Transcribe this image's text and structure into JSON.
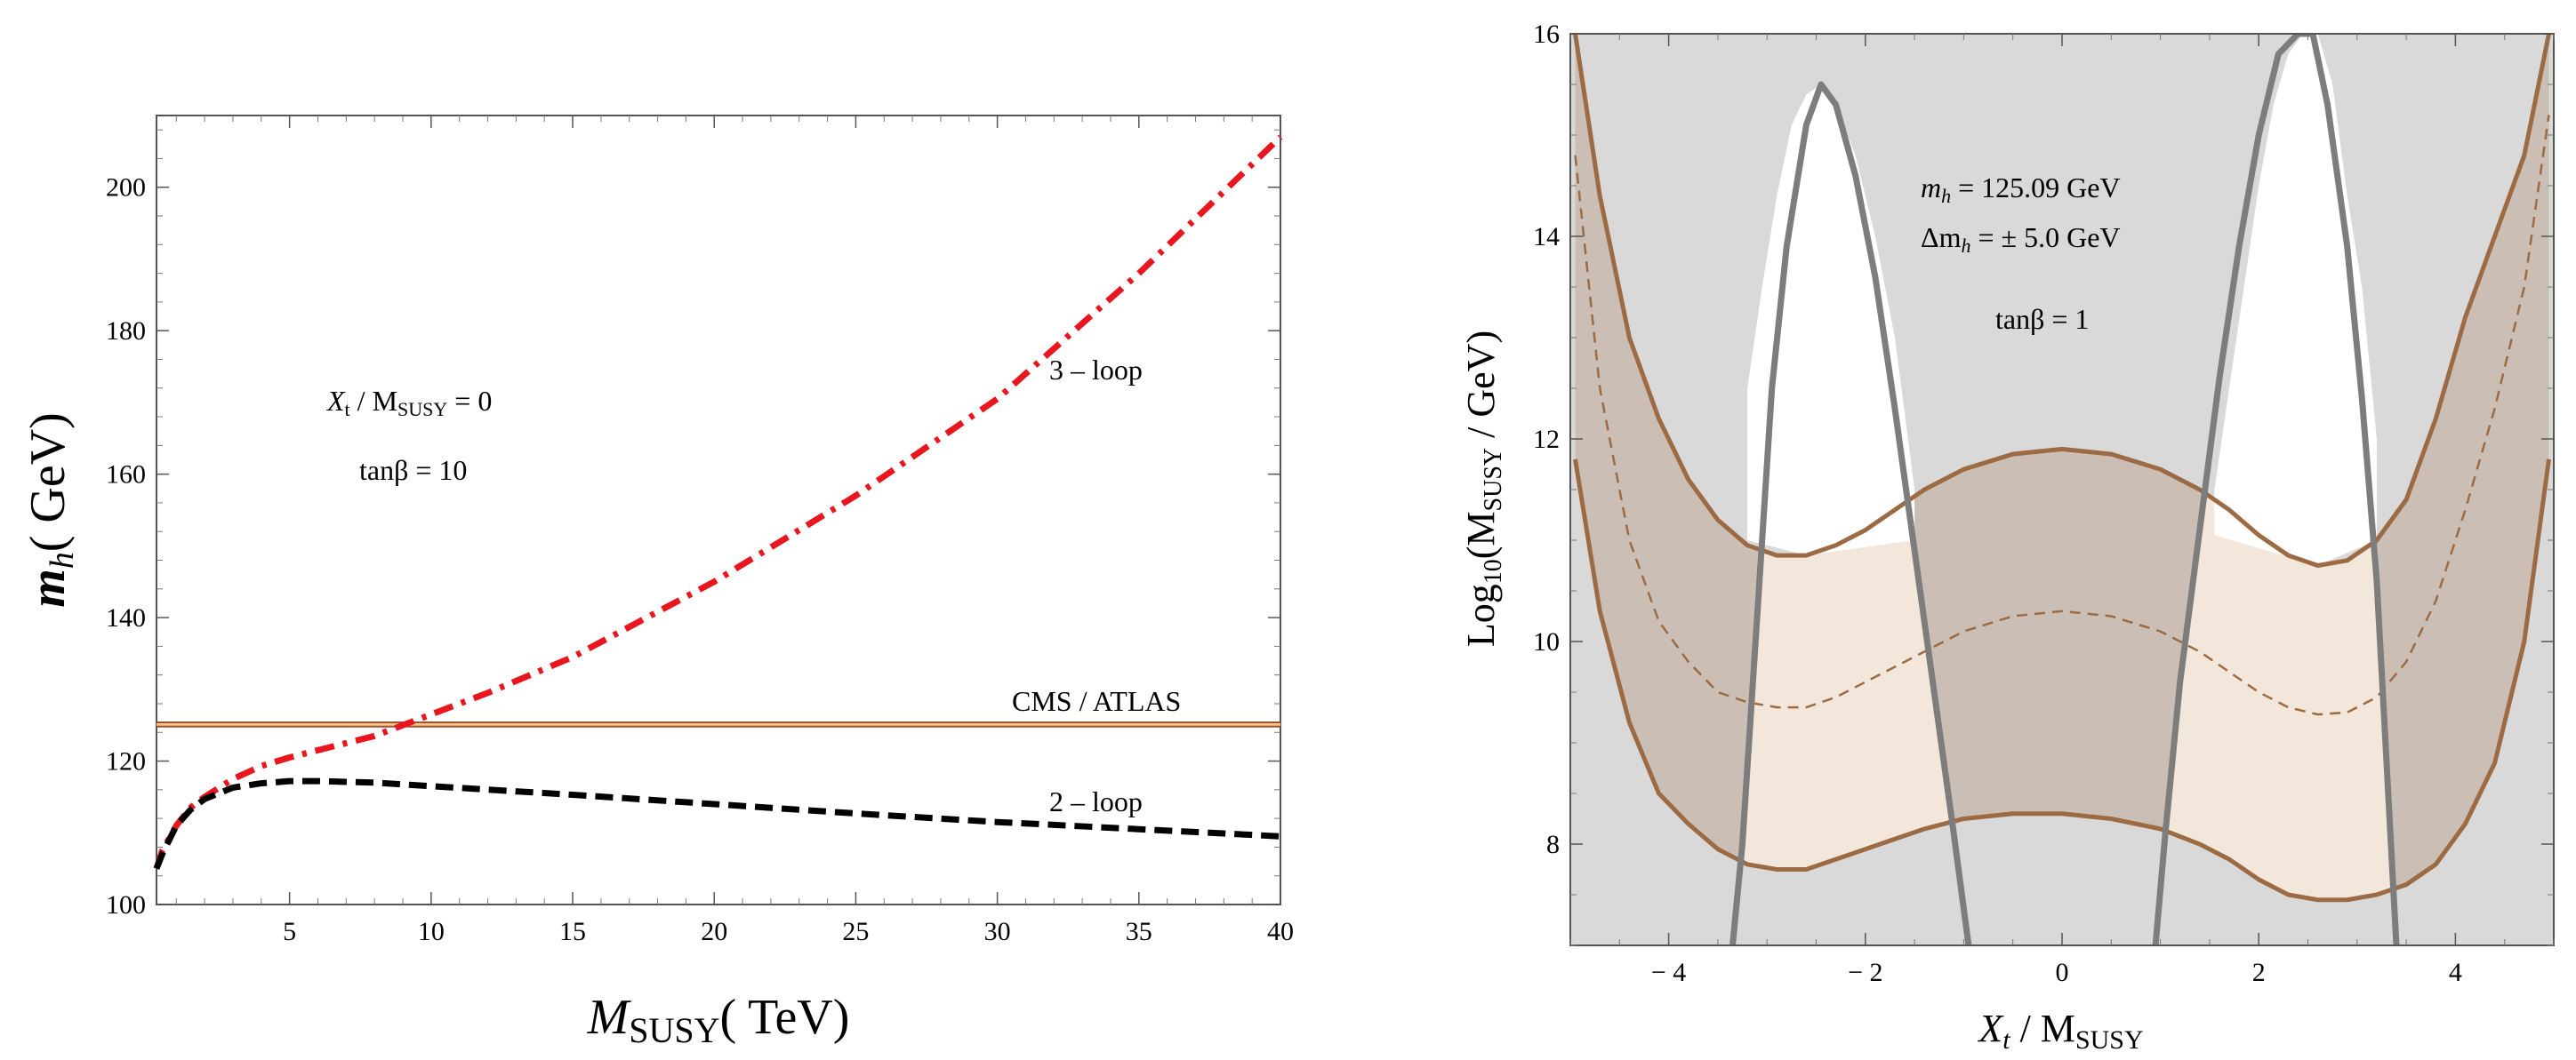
{
  "chart_data": [
    {
      "type": "line",
      "title": "",
      "xlabel": {
        "base": "M",
        "sub": "SUSY",
        "rest": "( TeV)"
      },
      "ylabel": {
        "base": "m",
        "sub": "h",
        "rest": "( GeV)"
      },
      "xlim": [
        0.3,
        40
      ],
      "ylim": [
        100,
        210
      ],
      "x_ticks": [
        5,
        10,
        15,
        20,
        25,
        30,
        35,
        40
      ],
      "y_ticks": [
        100,
        120,
        140,
        160,
        180,
        200
      ],
      "annotations": {
        "xt_ratio": {
          "base": "X",
          "sub1": "t",
          "mid": " / M",
          "sub2": "SUSY",
          "rest": " = 0"
        },
        "tanbeta": "tanβ = 10"
      },
      "series": [
        {
          "name": "3 – loop",
          "color": "#e8161e",
          "style": "dashdot",
          "x": [
            0.3,
            0.5,
            1,
            1.5,
            2,
            3,
            4,
            5,
            6,
            8,
            10,
            12,
            15,
            20,
            25,
            30,
            35,
            40
          ],
          "y": [
            105,
            107.5,
            111,
            113.5,
            115,
            117.5,
            119.3,
            120.5,
            121.5,
            123.5,
            126.5,
            129.5,
            134.5,
            145,
            157,
            170.5,
            188,
            207
          ]
        },
        {
          "name": "2 – loop",
          "color": "#000000",
          "style": "dashed",
          "x": [
            0.3,
            0.5,
            1,
            1.5,
            2,
            3,
            4,
            5,
            6,
            8,
            10,
            15,
            20,
            25,
            30,
            35,
            40
          ],
          "y": [
            105,
            107,
            111,
            113.2,
            114.7,
            116.3,
            116.9,
            117.2,
            117.2,
            117,
            116.5,
            115.3,
            114,
            112.7,
            111.5,
            110.5,
            109.5
          ]
        }
      ],
      "reference_band": {
        "name": "CMS / ATLAS",
        "y_range": [
          124.8,
          125.4
        ],
        "color": "#a0522d"
      },
      "series_labels": {
        "three_loop": "3 – loop",
        "two_loop": "2 – loop",
        "band": "CMS / ATLAS"
      }
    },
    {
      "type": "area",
      "title": "",
      "xlabel": {
        "base": "X",
        "sub1": "t",
        "mid": " / M",
        "sub2": "SUSY"
      },
      "ylabel": {
        "base": "Log",
        "sub1": "10",
        "mid": "(M",
        "sub2": "SUSY",
        "rest": "  /  GeV)"
      },
      "xlim": [
        -5,
        5
      ],
      "ylim": [
        7,
        16
      ],
      "x_ticks": [
        -4,
        -2,
        0,
        2,
        4
      ],
      "y_ticks": [
        8,
        10,
        12,
        14,
        16
      ],
      "x_tick_labels": [
        "− 4",
        "− 2",
        "0",
        "2",
        "4"
      ],
      "annotations": {
        "mh": {
          "base": "m",
          "sub": "h",
          "rest": " = 125.09   GeV"
        },
        "dmh": {
          "base": "Δm",
          "sub": "h",
          "rest": " = ± 5.0   GeV"
        },
        "tanbeta": "tanβ = 1"
      },
      "colors": {
        "background": "#d9d9d9",
        "light_band": "#f3e7dc",
        "dark_band": "#cbbfb5",
        "brown": "#9c6b44",
        "gray_contour": "#7d7d7d"
      },
      "white_regions": {
        "left_x": [
          -3.2,
          -3.05,
          -2.9,
          -2.75,
          -2.6,
          -2.45,
          -2.3,
          -2.1,
          -1.9,
          -1.7,
          -1.5
        ],
        "left_top": [
          12.5,
          13.5,
          14.4,
          15.1,
          15.4,
          15.5,
          15.3,
          14.8,
          14.0,
          13.0,
          11.5
        ],
        "right_x": [
          1.55,
          1.7,
          1.85,
          2.0,
          2.15,
          2.3,
          2.45,
          2.6,
          2.75,
          2.9,
          3.05,
          3.2
        ],
        "right_top": [
          11.5,
          12.5,
          13.5,
          14.5,
          15.3,
          15.8,
          16.0,
          16.0,
          15.5,
          14.4,
          13.5,
          12.0
        ]
      },
      "dark_band": {
        "outer_x": [
          -4.95,
          -4.7,
          -4.4,
          -4.1,
          -3.8,
          -3.5,
          -3.2,
          -2.9,
          -2.6,
          -2.3,
          -2.0,
          -1.7,
          -1.4,
          -1.0,
          -0.5,
          0,
          0.5,
          1.0,
          1.4,
          1.7,
          2.0,
          2.3,
          2.6,
          2.9,
          3.2,
          3.5,
          3.8,
          4.1,
          4.4,
          4.7,
          4.95
        ],
        "outer_y": [
          16,
          14.4,
          13.0,
          12.2,
          11.6,
          11.2,
          10.95,
          10.85,
          10.85,
          10.95,
          11.1,
          11.3,
          11.5,
          11.7,
          11.85,
          11.9,
          11.85,
          11.7,
          11.5,
          11.3,
          11.05,
          10.85,
          10.75,
          10.8,
          11.0,
          11.4,
          12.2,
          13.2,
          14.0,
          14.8,
          16
        ],
        "inner_x": [
          -4.95,
          -4.7,
          -4.4,
          -4.1,
          -3.8,
          -3.5,
          -3.2,
          -2.9,
          -2.6,
          -2.3,
          -2.0,
          -1.7,
          -1.4,
          -1.0,
          -0.5,
          0,
          0.5,
          1.0,
          1.4,
          1.7,
          2.0,
          2.3,
          2.6,
          2.9,
          3.2,
          3.5,
          3.8,
          4.1,
          4.4,
          4.7,
          4.95
        ],
        "inner_y": [
          11.8,
          10.3,
          9.2,
          8.5,
          8.2,
          7.95,
          7.8,
          7.75,
          7.75,
          7.85,
          7.95,
          8.05,
          8.15,
          8.25,
          8.3,
          8.3,
          8.25,
          8.15,
          8.0,
          7.85,
          7.65,
          7.5,
          7.45,
          7.45,
          7.5,
          7.6,
          7.8,
          8.2,
          8.8,
          10.0,
          11.8
        ]
      },
      "dashed_center": {
        "x": [
          -4.95,
          -4.7,
          -4.4,
          -4.1,
          -3.8,
          -3.5,
          -3.2,
          -2.9,
          -2.6,
          -2.3,
          -2.0,
          -1.7,
          -1.4,
          -1.0,
          -0.5,
          0,
          0.5,
          1.0,
          1.4,
          1.7,
          2.0,
          2.3,
          2.6,
          2.9,
          3.2,
          3.5,
          3.8,
          4.1,
          4.4,
          4.7,
          4.95
        ],
        "y": [
          14.8,
          12.5,
          11.0,
          10.2,
          9.8,
          9.5,
          9.4,
          9.35,
          9.35,
          9.45,
          9.6,
          9.75,
          9.9,
          10.1,
          10.25,
          10.3,
          10.25,
          10.1,
          9.9,
          9.7,
          9.5,
          9.35,
          9.28,
          9.3,
          9.45,
          9.8,
          10.4,
          11.3,
          12.3,
          13.5,
          15.2
        ]
      },
      "gray_contours": [
        {
          "x": [
            -3.35,
            -3.25,
            -3.15,
            -3.05,
            -2.95,
            -2.8,
            -2.6,
            -2.45,
            -2.3,
            -2.1,
            -1.9,
            -1.7,
            -1.5,
            -1.3,
            -1.1,
            -0.95
          ],
          "y": [
            7.0,
            8.0,
            9.5,
            11.0,
            12.5,
            13.9,
            15.1,
            15.5,
            15.3,
            14.6,
            13.6,
            12.3,
            10.9,
            9.5,
            8.1,
            7.0
          ]
        },
        {
          "x": [
            0.95,
            1.05,
            1.2,
            1.4,
            1.6,
            1.8,
            2.0,
            2.2,
            2.4,
            2.55,
            2.7,
            2.9,
            3.05,
            3.2,
            3.3,
            3.4
          ],
          "y": [
            7.0,
            8.1,
            9.6,
            11.1,
            12.6,
            13.9,
            15.0,
            15.8,
            16.0,
            16.0,
            15.3,
            13.9,
            12.4,
            10.6,
            8.8,
            7.0
          ]
        }
      ]
    }
  ]
}
